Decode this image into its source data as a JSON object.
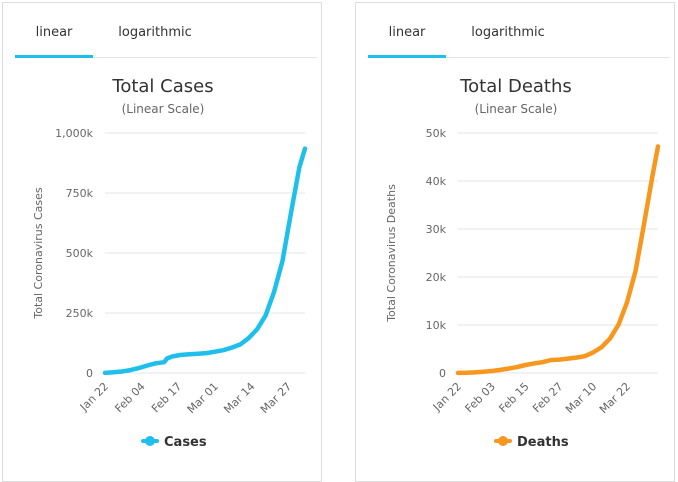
{
  "panels": [
    {
      "tabs": [
        "linear",
        "logarithmic"
      ],
      "active_tab": 0,
      "title": "Total Cases",
      "subtitle": "(Linear Scale)"
    },
    {
      "tabs": [
        "linear",
        "logarithmic"
      ],
      "active_tab": 0,
      "title": "Total Deaths",
      "subtitle": "(Linear Scale)"
    }
  ],
  "chart_data": [
    {
      "type": "line",
      "title": "Total Cases",
      "subtitle": "(Linear Scale)",
      "xlabel": "",
      "ylabel": "Total Coronavirus Cases",
      "ylim": [
        0,
        1000000
      ],
      "y_ticks": [
        0,
        250000,
        500000,
        750000,
        1000000
      ],
      "y_tick_labels": [
        "0",
        "250k",
        "500k",
        "750k",
        "1,000k"
      ],
      "x_tick_labels": [
        "Jan 22",
        "Feb 04",
        "Feb 17",
        "Mar 01",
        "Mar 14",
        "Mar 27"
      ],
      "grid": true,
      "legend": "bottom",
      "color": "#1ec0eb",
      "series": [
        {
          "name": "Cases",
          "x": [
            "Jan 22",
            "Jan 25",
            "Jan 28",
            "Jan 31",
            "Feb 03",
            "Feb 06",
            "Feb 09",
            "Feb 12",
            "Feb 13",
            "Feb 15",
            "Feb 18",
            "Feb 21",
            "Feb 24",
            "Feb 27",
            "Mar 01",
            "Mar 04",
            "Mar 07",
            "Mar 10",
            "Mar 13",
            "Mar 16",
            "Mar 19",
            "Mar 22",
            "Mar 25",
            "Mar 28",
            "Mar 31",
            "Apr 02"
          ],
          "values": [
            580,
            2900,
            6100,
            11900,
            20600,
            31200,
            40600,
            45200,
            60400,
            69200,
            75600,
            78500,
            80400,
            83000,
            88600,
            95200,
            105800,
            118600,
            145300,
            182000,
            240000,
            337000,
            467000,
            665000,
            858000,
            935000
          ]
        }
      ]
    },
    {
      "type": "line",
      "title": "Total Deaths",
      "subtitle": "(Linear Scale)",
      "xlabel": "",
      "ylabel": "Total Coronavirus Deaths",
      "ylim": [
        0,
        50000
      ],
      "y_ticks": [
        0,
        10000,
        20000,
        30000,
        40000,
        50000
      ],
      "y_tick_labels": [
        "0",
        "10k",
        "20k",
        "30k",
        "40k",
        "50k"
      ],
      "x_tick_labels": [
        "Jan 22",
        "Feb 03",
        "Feb 15",
        "Feb 27",
        "Mar 10",
        "Mar 22"
      ],
      "grid": true,
      "legend": "bottom",
      "color": "#f8971e",
      "series": [
        {
          "name": "Deaths",
          "x": [
            "Jan 22",
            "Jan 25",
            "Jan 28",
            "Jan 31",
            "Feb 03",
            "Feb 06",
            "Feb 09",
            "Feb 12",
            "Feb 15",
            "Feb 18",
            "Feb 21",
            "Feb 24",
            "Feb 27",
            "Mar 01",
            "Mar 04",
            "Mar 07",
            "Mar 10",
            "Mar 13",
            "Mar 16",
            "Mar 19",
            "Mar 22",
            "Mar 25",
            "Mar 28",
            "Mar 31",
            "Apr 02"
          ],
          "values": [
            17,
            56,
            132,
            259,
            427,
            638,
            910,
            1260,
            1670,
            2010,
            2250,
            2700,
            2800,
            3000,
            3200,
            3500,
            4300,
            5400,
            7200,
            10100,
            14700,
            21200,
            30900,
            41000,
            47200
          ]
        }
      ]
    }
  ]
}
